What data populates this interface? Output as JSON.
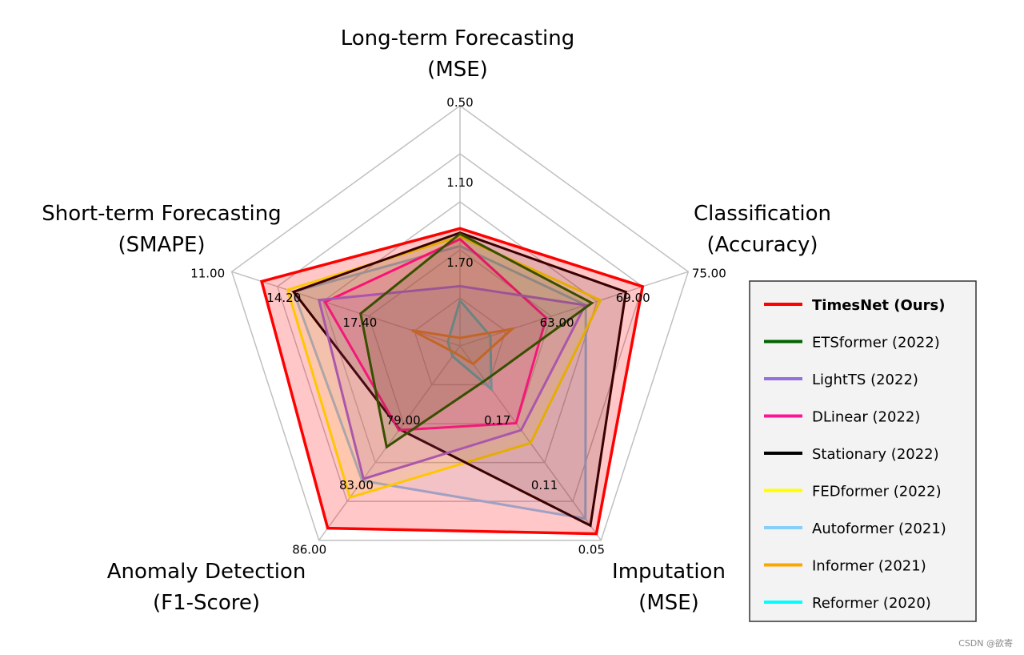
{
  "chart_data": {
    "type": "radar",
    "axes": [
      {
        "title_lines": [
          "Long-term Forecasting",
          "(MSE)"
        ],
        "ticks": [
          "0.50",
          "1.10",
          "1.70"
        ]
      },
      {
        "title_lines": [
          "Classification",
          "(Accuracy)"
        ],
        "ticks": [
          "75.00",
          "69.00",
          "63.00"
        ]
      },
      {
        "title_lines": [
          "Imputation",
          "(MSE)"
        ],
        "ticks": [
          "0.05",
          "0.11",
          "0.17"
        ]
      },
      {
        "title_lines": [
          "Anomaly Detection",
          "(F1-Score)"
        ],
        "ticks": [
          "86.00",
          "83.00",
          "79.00"
        ]
      },
      {
        "title_lines": [
          "Short-term Forecasting",
          "(SMAPE)"
        ],
        "ticks": [
          "11.00",
          "14.20",
          "17.40"
        ]
      }
    ],
    "series": [
      {
        "name": "Reformer (2020)",
        "color": "#00ffff",
        "values": [
          0.85,
          0.6,
          1.0,
          0.24,
          0.24
        ]
      },
      {
        "name": "Informer (2021)",
        "color": "#ffa500",
        "values": [
          0.15,
          1.03,
          0.42,
          0.16,
          0.95
        ]
      },
      {
        "name": "Autoformer (2021)",
        "color": "#87cefa",
        "values": [
          1.87,
          2.48,
          4.0,
          3.12,
          3.28
        ]
      },
      {
        "name": "FEDformer (2022)",
        "color": "#ffff00",
        "values": [
          2.05,
          2.77,
          2.25,
          3.51,
          3.4
        ]
      },
      {
        "name": "Stationary (2022)",
        "color": "#000000",
        "values": [
          2.12,
          3.27,
          4.16,
          1.93,
          3.28
        ]
      },
      {
        "name": "DLinear (2022)",
        "color": "#ff1493",
        "values": [
          2.0,
          1.7,
          1.79,
          1.95,
          2.66
        ]
      },
      {
        "name": "LightTS (2022)",
        "color": "#9370db",
        "values": [
          1.12,
          2.47,
          1.95,
          3.08,
          2.78
        ]
      },
      {
        "name": "ETSformer (2022)",
        "color": "#006400",
        "values": [
          2.1,
          2.6,
          0.8,
          2.34,
          1.96
        ]
      },
      {
        "name": "TimesNet (Ours)",
        "color": "#ff0000",
        "values": [
          2.2,
          3.6,
          4.35,
          4.22,
          3.91
        ]
      }
    ],
    "legend_order": [
      "TimesNet (Ours)",
      "ETSformer (2022)",
      "LightTS (2022)",
      "DLinear (2022)",
      "Stationary (2022)",
      "FEDformer (2022)",
      "Autoformer (2021)",
      "Informer (2021)",
      "Reformer (2020)"
    ],
    "legend_position": "right",
    "scale_max": 4.5,
    "grid_levels": 5,
    "tick_levels": [
      4.5,
      3.0,
      1.5
    ],
    "grid": true
  },
  "watermark": "CSDN @欲寄"
}
